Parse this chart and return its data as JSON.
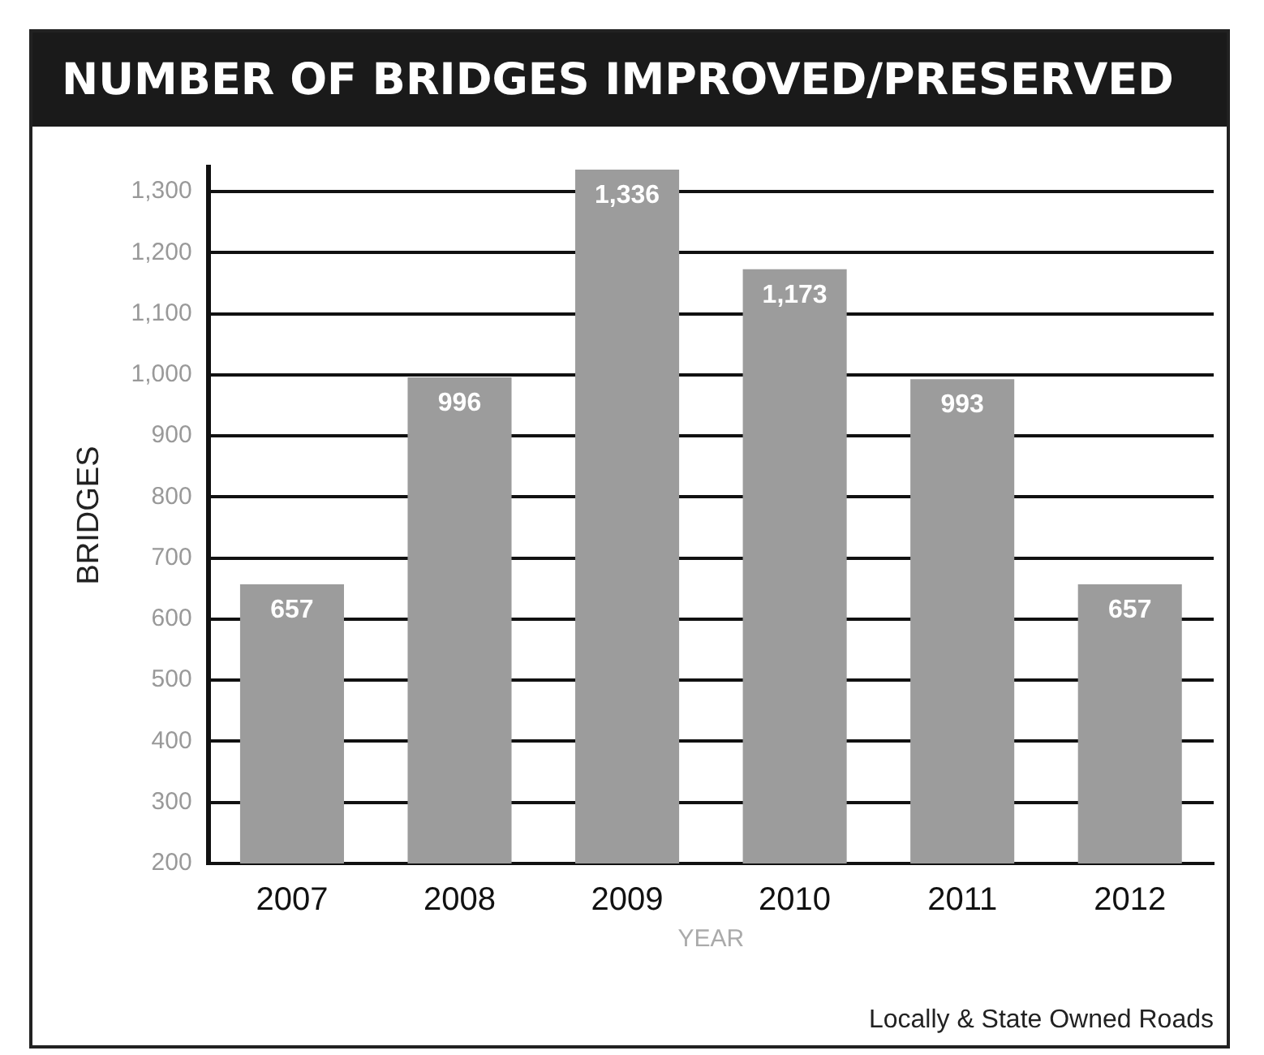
{
  "chart_data": {
    "type": "bar",
    "title": "NUMBER OF BRIDGES IMPROVED/PRESERVED",
    "xlabel": "YEAR",
    "ylabel": "BRIDGES",
    "categories": [
      "2007",
      "2008",
      "2009",
      "2010",
      "2011",
      "2012"
    ],
    "values": [
      657,
      996,
      1336,
      1173,
      993,
      657
    ],
    "value_labels": [
      "657",
      "996",
      "1,336",
      "1,173",
      "993",
      "657"
    ],
    "color": "#9c9c9c",
    "ylim": [
      200,
      1340
    ],
    "yticks": [
      200,
      300,
      400,
      500,
      600,
      700,
      800,
      900,
      {
        "value": 1000,
        "label": "1,000"
      },
      {
        "value": 1100,
        "label": "1,100"
      },
      {
        "value": 1200,
        "label": "1,200"
      },
      {
        "value": 1300,
        "label": "1,300"
      }
    ],
    "grid": "y",
    "annotations": [
      "Locally & State Owned Roads"
    ]
  }
}
